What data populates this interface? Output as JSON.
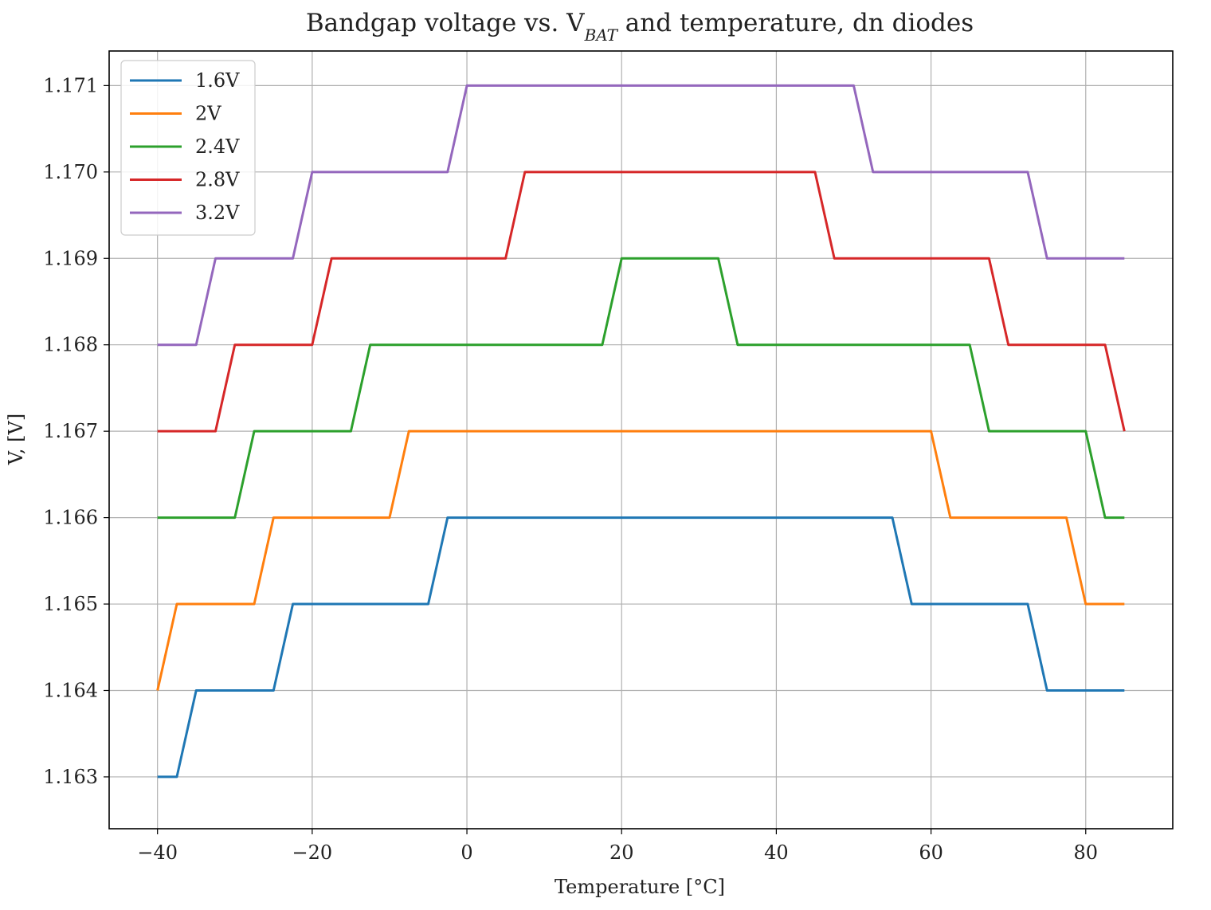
{
  "chart_data": {
    "type": "line",
    "title": "Bandgap voltage vs. V",
    "title_sub": "BAT",
    "title_suffix": " and temperature, dn diodes",
    "xlabel": "Temperature [°C]",
    "ylabel": "V, [V]",
    "xlim": [
      -46.25,
      91.25
    ],
    "ylim": [
      1.1624,
      1.1714
    ],
    "xticks": [
      -40,
      -20,
      0,
      20,
      40,
      60,
      80
    ],
    "yticks": [
      1.163,
      1.164,
      1.165,
      1.166,
      1.167,
      1.168,
      1.169,
      1.17,
      1.171
    ],
    "grid": true,
    "legend_position": "top-left",
    "series": [
      {
        "name": "1.6V",
        "color": "#1f77b4",
        "points": [
          [
            -40,
            1.163
          ],
          [
            -37.5,
            1.163
          ],
          [
            -35,
            1.164
          ],
          [
            -25,
            1.164
          ],
          [
            -22.5,
            1.165
          ],
          [
            -5,
            1.165
          ],
          [
            -2.5,
            1.166
          ],
          [
            55,
            1.166
          ],
          [
            57.5,
            1.165
          ],
          [
            72.5,
            1.165
          ],
          [
            75,
            1.164
          ],
          [
            85,
            1.164
          ]
        ]
      },
      {
        "name": "2V",
        "color": "#ff7f0e",
        "points": [
          [
            -40,
            1.164
          ],
          [
            -37.5,
            1.165
          ],
          [
            -27.5,
            1.165
          ],
          [
            -25,
            1.166
          ],
          [
            -10,
            1.166
          ],
          [
            -7.5,
            1.167
          ],
          [
            60,
            1.167
          ],
          [
            62.5,
            1.166
          ],
          [
            77.5,
            1.166
          ],
          [
            80,
            1.165
          ],
          [
            85,
            1.165
          ]
        ]
      },
      {
        "name": "2.4V",
        "color": "#2ca02c",
        "points": [
          [
            -40,
            1.166
          ],
          [
            -30,
            1.166
          ],
          [
            -27.5,
            1.167
          ],
          [
            -15,
            1.167
          ],
          [
            -12.5,
            1.168
          ],
          [
            17.5,
            1.168
          ],
          [
            20,
            1.169
          ],
          [
            32.5,
            1.169
          ],
          [
            35,
            1.168
          ],
          [
            65,
            1.168
          ],
          [
            67.5,
            1.167
          ],
          [
            80,
            1.167
          ],
          [
            82.5,
            1.166
          ],
          [
            85,
            1.166
          ]
        ]
      },
      {
        "name": "2.8V",
        "color": "#d62728",
        "points": [
          [
            -40,
            1.167
          ],
          [
            -32.5,
            1.167
          ],
          [
            -30,
            1.168
          ],
          [
            -20,
            1.168
          ],
          [
            -17.5,
            1.169
          ],
          [
            5,
            1.169
          ],
          [
            7.5,
            1.17
          ],
          [
            45,
            1.17
          ],
          [
            47.5,
            1.169
          ],
          [
            67.5,
            1.169
          ],
          [
            70,
            1.168
          ],
          [
            82.5,
            1.168
          ],
          [
            85,
            1.167
          ]
        ]
      },
      {
        "name": "3.2V",
        "color": "#9467bd",
        "points": [
          [
            -40,
            1.168
          ],
          [
            -35,
            1.168
          ],
          [
            -32.5,
            1.169
          ],
          [
            -22.5,
            1.169
          ],
          [
            -20,
            1.17
          ],
          [
            -2.5,
            1.17
          ],
          [
            0,
            1.171
          ],
          [
            50,
            1.171
          ],
          [
            52.5,
            1.17
          ],
          [
            72.5,
            1.17
          ],
          [
            75,
            1.169
          ],
          [
            85,
            1.169
          ]
        ]
      }
    ]
  }
}
